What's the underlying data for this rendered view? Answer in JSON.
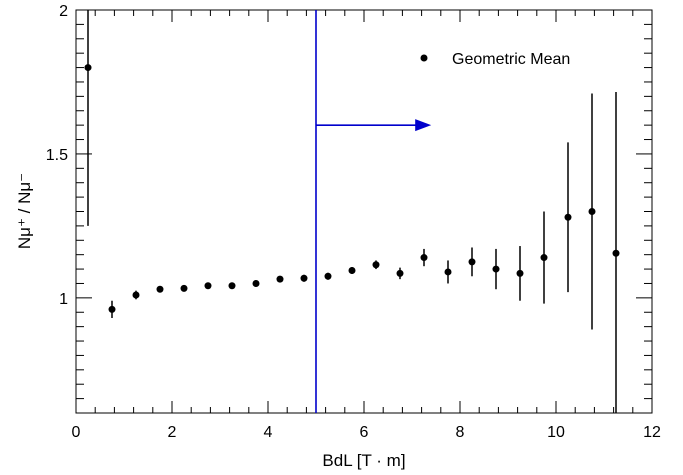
{
  "chart_data": {
    "type": "scatter",
    "xlabel": "BdL [T · m]",
    "ylabel": "Nμ⁺ / Nμ⁻",
    "xlim": [
      0,
      12
    ],
    "ylim": [
      0.6,
      2.0
    ],
    "x_ticks": [
      0,
      2,
      4,
      6,
      8,
      10,
      12
    ],
    "y_ticks": [
      1,
      1.5,
      2
    ],
    "y_tick_labels": [
      "1",
      "1.5",
      "2"
    ],
    "grid": false,
    "legend": {
      "placement": "top-right",
      "entries": [
        "Geometric Mean"
      ]
    },
    "series": [
      {
        "name": "Geometric Mean",
        "color": "#000000",
        "x": [
          0.25,
          0.75,
          1.25,
          1.75,
          2.25,
          2.75,
          3.25,
          3.75,
          4.25,
          4.75,
          5.25,
          5.75,
          6.25,
          6.75,
          7.25,
          7.75,
          8.25,
          8.75,
          9.25,
          9.75,
          10.25,
          10.75,
          11.25
        ],
        "y": [
          1.8,
          0.96,
          1.01,
          1.03,
          1.033,
          1.042,
          1.042,
          1.05,
          1.065,
          1.068,
          1.075,
          1.095,
          1.115,
          1.085,
          1.14,
          1.09,
          1.125,
          1.1,
          1.085,
          1.14,
          1.28,
          1.3,
          1.155
        ],
        "err": [
          0.55,
          0.03,
          0.015,
          0.01,
          0.01,
          0.01,
          0.01,
          0.01,
          0.01,
          0.012,
          0.012,
          0.012,
          0.015,
          0.02,
          0.03,
          0.04,
          0.05,
          0.07,
          0.095,
          0.16,
          0.26,
          0.41,
          0.56
        ]
      }
    ],
    "annotations": [
      {
        "type": "vertical-line",
        "x": 5,
        "color": "#0000cc"
      },
      {
        "type": "arrow",
        "x_start": 5,
        "x_end": 7.4,
        "y": 1.6,
        "color": "#0000cc"
      }
    ]
  }
}
